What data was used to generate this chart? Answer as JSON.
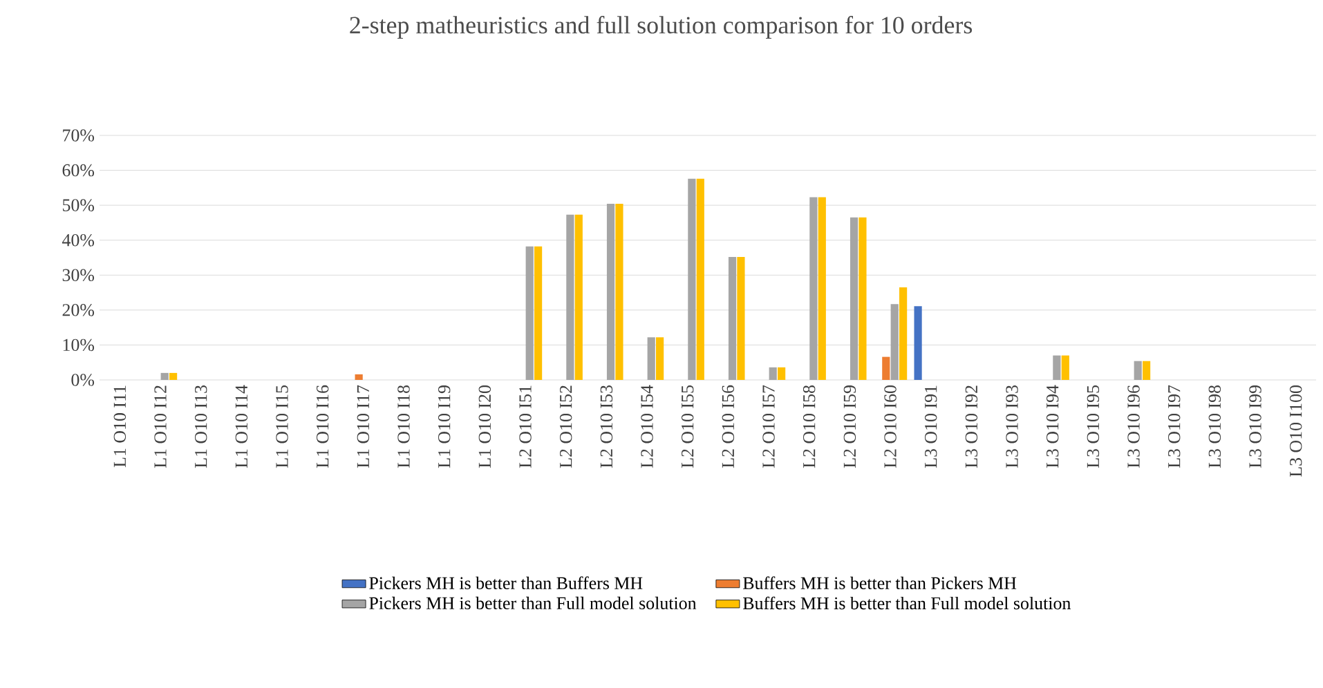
{
  "chart_data": {
    "type": "bar",
    "title": "2-step matheuristics and full solution comparison for 10 orders",
    "categories": [
      "L1 O10 I11",
      "L1 O10 I12",
      "L1 O10 I13",
      "L1 O10 I14",
      "L1 O10 I15",
      "L1 O10 I16",
      "L1 O10 I17",
      "L1 O10 I18",
      "L1 O10 I19",
      "L1 O10 I20",
      "L2 O10 I51",
      "L2 O10 I52",
      "L2 O10 I53",
      "L2 O10 I54",
      "L2 O10 I55",
      "L2 O10 I56",
      "L2 O10 I57",
      "L2 O10 I58",
      "L2 O10 I59",
      "L2 O10 I60",
      "L3 O10 I91",
      "L3 O10 I92",
      "L3 O10 I93",
      "L3 O10 I94",
      "L3 O10 I95",
      "L3 O10 I96",
      "L3 O10 I97",
      "L3 O10 I98",
      "L3 O10 I99",
      "L3 O10 I100"
    ],
    "series": [
      {
        "name": "Pickers MH is better than Buffers MH",
        "color": "#4472c4",
        "values": [
          0,
          0,
          0,
          0,
          0,
          0,
          0,
          0,
          0,
          0,
          0,
          0,
          0,
          0,
          0,
          0,
          0,
          0,
          0,
          0,
          21.1,
          0,
          0,
          0,
          0,
          0,
          0,
          0,
          0,
          0
        ]
      },
      {
        "name": "Buffers MH is better than Pickers MH",
        "color": "#ed7d31",
        "values": [
          0,
          0,
          0,
          0,
          0,
          0,
          1.6,
          0,
          0,
          0,
          0,
          0,
          0,
          0,
          0,
          0,
          0,
          0,
          0,
          6.6,
          0,
          0,
          0,
          0,
          0,
          0,
          0,
          0,
          0,
          0
        ]
      },
      {
        "name": "Pickers MH is better than Full model solution",
        "color": "#a5a5a5",
        "values": [
          0,
          2.0,
          0,
          0,
          0,
          0,
          0,
          0,
          0,
          0,
          38.2,
          47.3,
          50.4,
          12.2,
          57.6,
          35.2,
          3.6,
          52.3,
          46.5,
          21.7,
          0,
          0,
          0,
          7.0,
          0,
          5.4,
          0,
          0,
          0,
          0
        ]
      },
      {
        "name": "Buffers MH is better than Full model solution",
        "color": "#ffc000",
        "values": [
          0,
          2.0,
          0,
          0,
          0,
          0,
          0,
          0,
          0,
          0,
          38.2,
          47.3,
          50.4,
          12.2,
          57.6,
          35.2,
          3.6,
          52.3,
          46.5,
          26.5,
          0,
          0,
          0,
          7.0,
          0,
          5.4,
          0,
          0,
          0,
          0
        ]
      }
    ],
    "ylim": [
      0,
      70
    ],
    "yticks": [
      {
        "value": 0,
        "label": "0%"
      },
      {
        "value": 10,
        "label": "10%"
      },
      {
        "value": 20,
        "label": "20%"
      },
      {
        "value": 30,
        "label": "30%"
      },
      {
        "value": 40,
        "label": "40%"
      },
      {
        "value": 50,
        "label": "50%"
      },
      {
        "value": 60,
        "label": "60%"
      },
      {
        "value": 70,
        "label": "70%"
      }
    ],
    "grid": "y",
    "legend": "bottom"
  }
}
